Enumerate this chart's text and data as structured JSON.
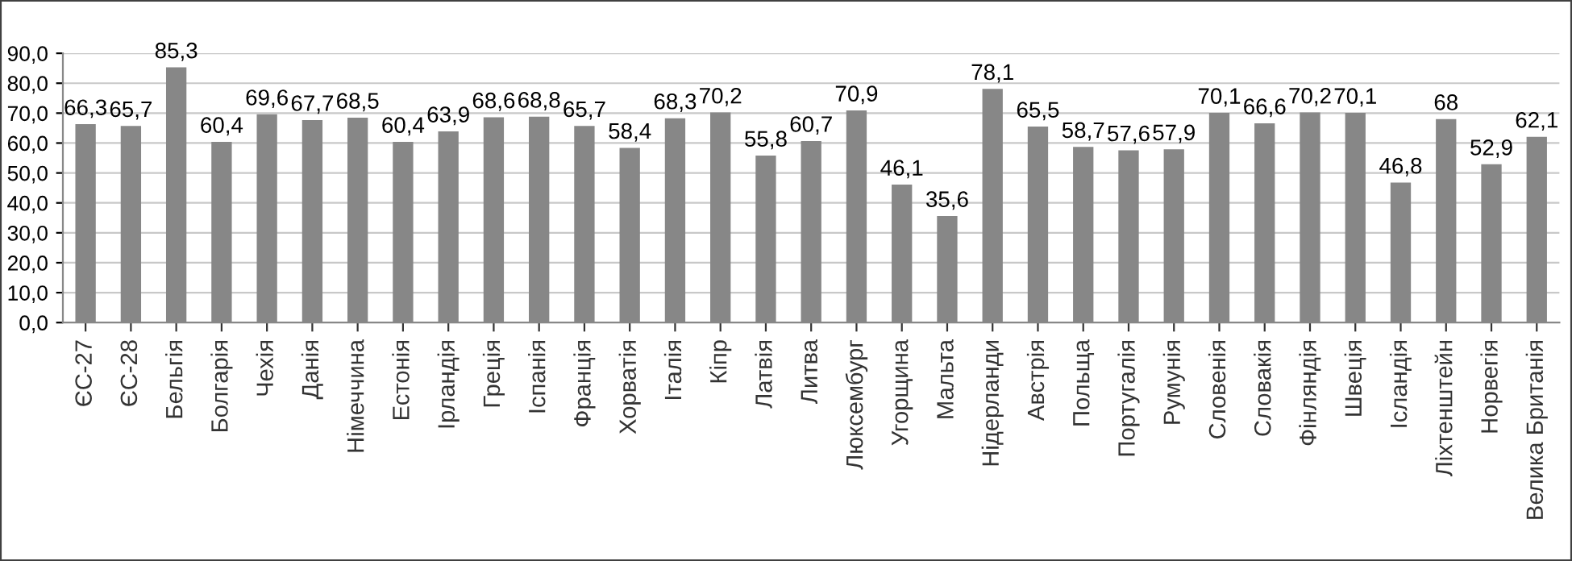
{
  "chart_data": {
    "type": "bar",
    "categories": [
      "ЄС-27",
      "ЄС-28",
      "Бельгія",
      "Болгарія",
      "Чехія",
      "Данія",
      "Німеччина",
      "Естонія",
      "Ірландія",
      "Греція",
      "Іспанія",
      "Франція",
      "Хорватія",
      "Італія",
      "Кіпр",
      "Латвія",
      "Литва",
      "Люксембург",
      "Угорщина",
      "Мальта",
      "Нідерланди",
      "Австрія",
      "Польща",
      "Португалія",
      "Румунія",
      "Словенія",
      "Словакія",
      "Фінляндія",
      "Швеція",
      "Ісландія",
      "Ліхтенштейн",
      "Норвегія",
      "Велика Британія"
    ],
    "values": [
      66.3,
      65.7,
      85.3,
      60.4,
      69.6,
      67.7,
      68.5,
      60.4,
      63.9,
      68.6,
      68.8,
      65.7,
      58.4,
      68.3,
      70.2,
      55.8,
      60.7,
      70.9,
      46.1,
      35.6,
      78.1,
      65.5,
      58.7,
      57.6,
      57.9,
      70.1,
      66.6,
      70.2,
      70.1,
      46.8,
      68,
      52.9,
      62.1
    ],
    "value_labels": [
      "66,3",
      "65,7",
      "85,3",
      "60,4",
      "69,6",
      "67,7",
      "68,5",
      "60,4",
      "63,9",
      "68,6",
      "68,8",
      "65,7",
      "58,4",
      "68,3",
      "70,2",
      "55,8",
      "60,7",
      "70,9",
      "46,1",
      "35,6",
      "78,1",
      "65,5",
      "58,7",
      "57,6",
      "57,9",
      "70,1",
      "66,6",
      "70,2",
      "70,1",
      "46,8",
      "68",
      "52,9",
      "62,1"
    ],
    "color": "#878787",
    "ylim": [
      0,
      90
    ],
    "yticks": [
      {
        "value": 0,
        "label": "0,0"
      },
      {
        "value": 10,
        "label": "10,0"
      },
      {
        "value": 20,
        "label": "20,0"
      },
      {
        "value": 30,
        "label": "30,0"
      },
      {
        "value": 40,
        "label": "40,0"
      },
      {
        "value": 50,
        "label": "50,0"
      },
      {
        "value": 60,
        "label": "60,0"
      },
      {
        "value": 70,
        "label": "70,0"
      },
      {
        "value": 80,
        "label": "80,0"
      },
      {
        "value": 90,
        "label": "90,0"
      }
    ],
    "grid": "y",
    "legend": false
  }
}
